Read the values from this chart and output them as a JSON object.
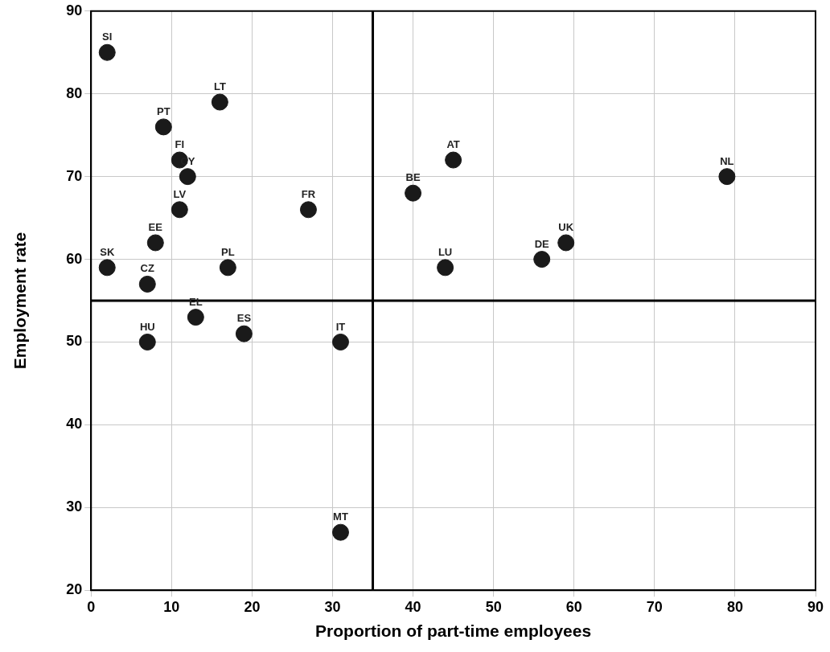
{
  "chart_data": {
    "type": "scatter",
    "xlabel": "Proportion of part-time employees",
    "ylabel": "Employment rate",
    "x": [
      2,
      16,
      9,
      11,
      12,
      11,
      27,
      40,
      45,
      79,
      8,
      2,
      17,
      44,
      56,
      59,
      7,
      7,
      13,
      19,
      31,
      31
    ],
    "values": [
      85,
      79,
      76,
      72,
      70,
      66,
      66,
      68,
      72,
      70,
      62,
      59,
      59,
      59,
      60,
      62,
      57,
      50,
      53,
      51,
      50,
      27
    ],
    "color": "#1a1a1a",
    "marker": "circle",
    "xlim": [
      0,
      90
    ],
    "xticks": [
      0,
      10,
      20,
      30,
      40,
      50,
      60,
      70,
      80,
      90
    ],
    "ylim": [
      20,
      90
    ],
    "yticks": [
      20,
      30,
      40,
      50,
      60,
      70,
      80,
      90
    ],
    "grid": true,
    "ref_lines": [
      {
        "axis": "x",
        "value": 35,
        "color": "#000000"
      },
      {
        "axis": "y",
        "value": 55,
        "color": "#000000"
      }
    ],
    "annotations": [
      {
        "text": "SI",
        "x": 2,
        "y": 85
      },
      {
        "text": "LT",
        "x": 16,
        "y": 79
      },
      {
        "text": "PT",
        "x": 9,
        "y": 76
      },
      {
        "text": "FI",
        "x": 11,
        "y": 72
      },
      {
        "text": "CY",
        "x": 12,
        "y": 70
      },
      {
        "text": "LV",
        "x": 11,
        "y": 66
      },
      {
        "text": "FR",
        "x": 27,
        "y": 66
      },
      {
        "text": "BE",
        "x": 40,
        "y": 68
      },
      {
        "text": "AT",
        "x": 45,
        "y": 72
      },
      {
        "text": "NL",
        "x": 79,
        "y": 70
      },
      {
        "text": "EE",
        "x": 8,
        "y": 62
      },
      {
        "text": "SK",
        "x": 2,
        "y": 59
      },
      {
        "text": "PL",
        "x": 17,
        "y": 59
      },
      {
        "text": "LU",
        "x": 44,
        "y": 59
      },
      {
        "text": "DE",
        "x": 56,
        "y": 60
      },
      {
        "text": "UK",
        "x": 59,
        "y": 62
      },
      {
        "text": "CZ",
        "x": 7,
        "y": 57
      },
      {
        "text": "HU",
        "x": 7,
        "y": 50
      },
      {
        "text": "EL",
        "x": 13,
        "y": 53
      },
      {
        "text": "ES",
        "x": 19,
        "y": 51
      },
      {
        "text": "IT",
        "x": 31,
        "y": 50
      },
      {
        "text": "MT",
        "x": 31,
        "y": 27
      }
    ]
  }
}
